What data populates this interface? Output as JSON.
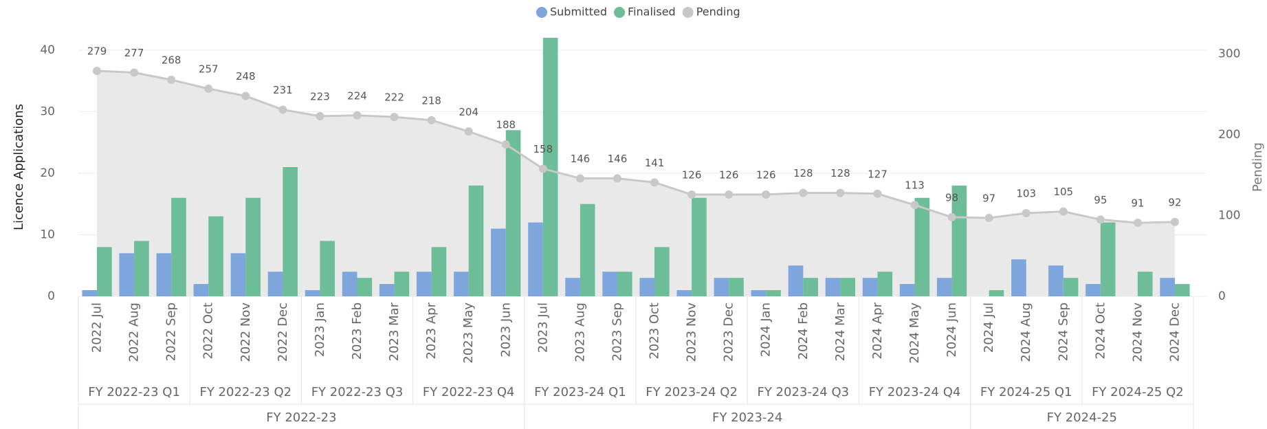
{
  "chart_data": {
    "type": "combo",
    "y_label": "Licence Applications",
    "y2_label": "Pending",
    "ylim": [
      0,
      42
    ],
    "yticks": [
      0,
      10,
      20,
      30,
      40
    ],
    "y2lim": [
      0,
      320
    ],
    "y2ticks": [
      0,
      100,
      200,
      300
    ],
    "grid": true,
    "legend": "top",
    "fiscal_years": [
      {
        "label": "FY 2022-23",
        "quarters": [
          {
            "label": "FY 2022-23 Q1",
            "months": [
              "2022 Jul",
              "2022 Aug",
              "2022 Sep"
            ]
          },
          {
            "label": "FY 2022-23 Q2",
            "months": [
              "2022 Oct",
              "2022 Nov",
              "2022 Dec"
            ]
          },
          {
            "label": "FY 2022-23 Q3",
            "months": [
              "2023 Jan",
              "2023 Feb",
              "2023 Mar"
            ]
          },
          {
            "label": "FY 2022-23 Q4",
            "months": [
              "2023 Apr",
              "2023 May",
              "2023 Jun"
            ]
          }
        ]
      },
      {
        "label": "FY 2023-24",
        "quarters": [
          {
            "label": "FY 2023-24 Q1",
            "months": [
              "2023 Jul",
              "2023 Aug",
              "2023 Sep"
            ]
          },
          {
            "label": "FY 2023-24 Q2",
            "months": [
              "2023 Oct",
              "2023 Nov",
              "2023 Dec"
            ]
          },
          {
            "label": "FY 2023-24 Q3",
            "months": [
              "2024 Jan",
              "2024 Feb",
              "2024 Mar"
            ]
          },
          {
            "label": "FY 2023-24 Q4",
            "months": [
              "2024 Apr",
              "2024 May",
              "2024 Jun"
            ]
          }
        ]
      },
      {
        "label": "FY 2024-25",
        "quarters": [
          {
            "label": "FY 2024-25 Q1",
            "months": [
              "2024 Jul",
              "2024 Aug",
              "2024 Sep"
            ]
          },
          {
            "label": "FY 2024-25 Q2",
            "months": [
              "2024 Oct",
              "2024 Nov",
              "2024 Dec"
            ]
          }
        ]
      }
    ],
    "series": [
      {
        "name": "Submitted",
        "type": "bar",
        "color": "#7ea6dd",
        "values": [
          1,
          7,
          7,
          2,
          7,
          4,
          1,
          4,
          2,
          4,
          4,
          11,
          12,
          3,
          4,
          3,
          1,
          3,
          1,
          5,
          3,
          3,
          2,
          3,
          0,
          6,
          5,
          2,
          0,
          3
        ]
      },
      {
        "name": "Finalised",
        "type": "bar",
        "color": "#6dbd98",
        "values": [
          8,
          9,
          16,
          13,
          16,
          21,
          9,
          3,
          4,
          8,
          18,
          27,
          42,
          15,
          4,
          8,
          16,
          3,
          1,
          3,
          3,
          4,
          16,
          18,
          1,
          0,
          3,
          12,
          4,
          2
        ]
      },
      {
        "name": "Pending",
        "type": "line",
        "axis": "y2",
        "color": "#c8c8c8",
        "values": [
          279,
          277,
          268,
          257,
          248,
          231,
          223,
          224,
          222,
          218,
          204,
          188,
          158,
          146,
          146,
          141,
          126,
          126,
          126,
          128,
          128,
          127,
          113,
          98,
          97,
          103,
          105,
          95,
          91,
          92
        ]
      }
    ]
  }
}
